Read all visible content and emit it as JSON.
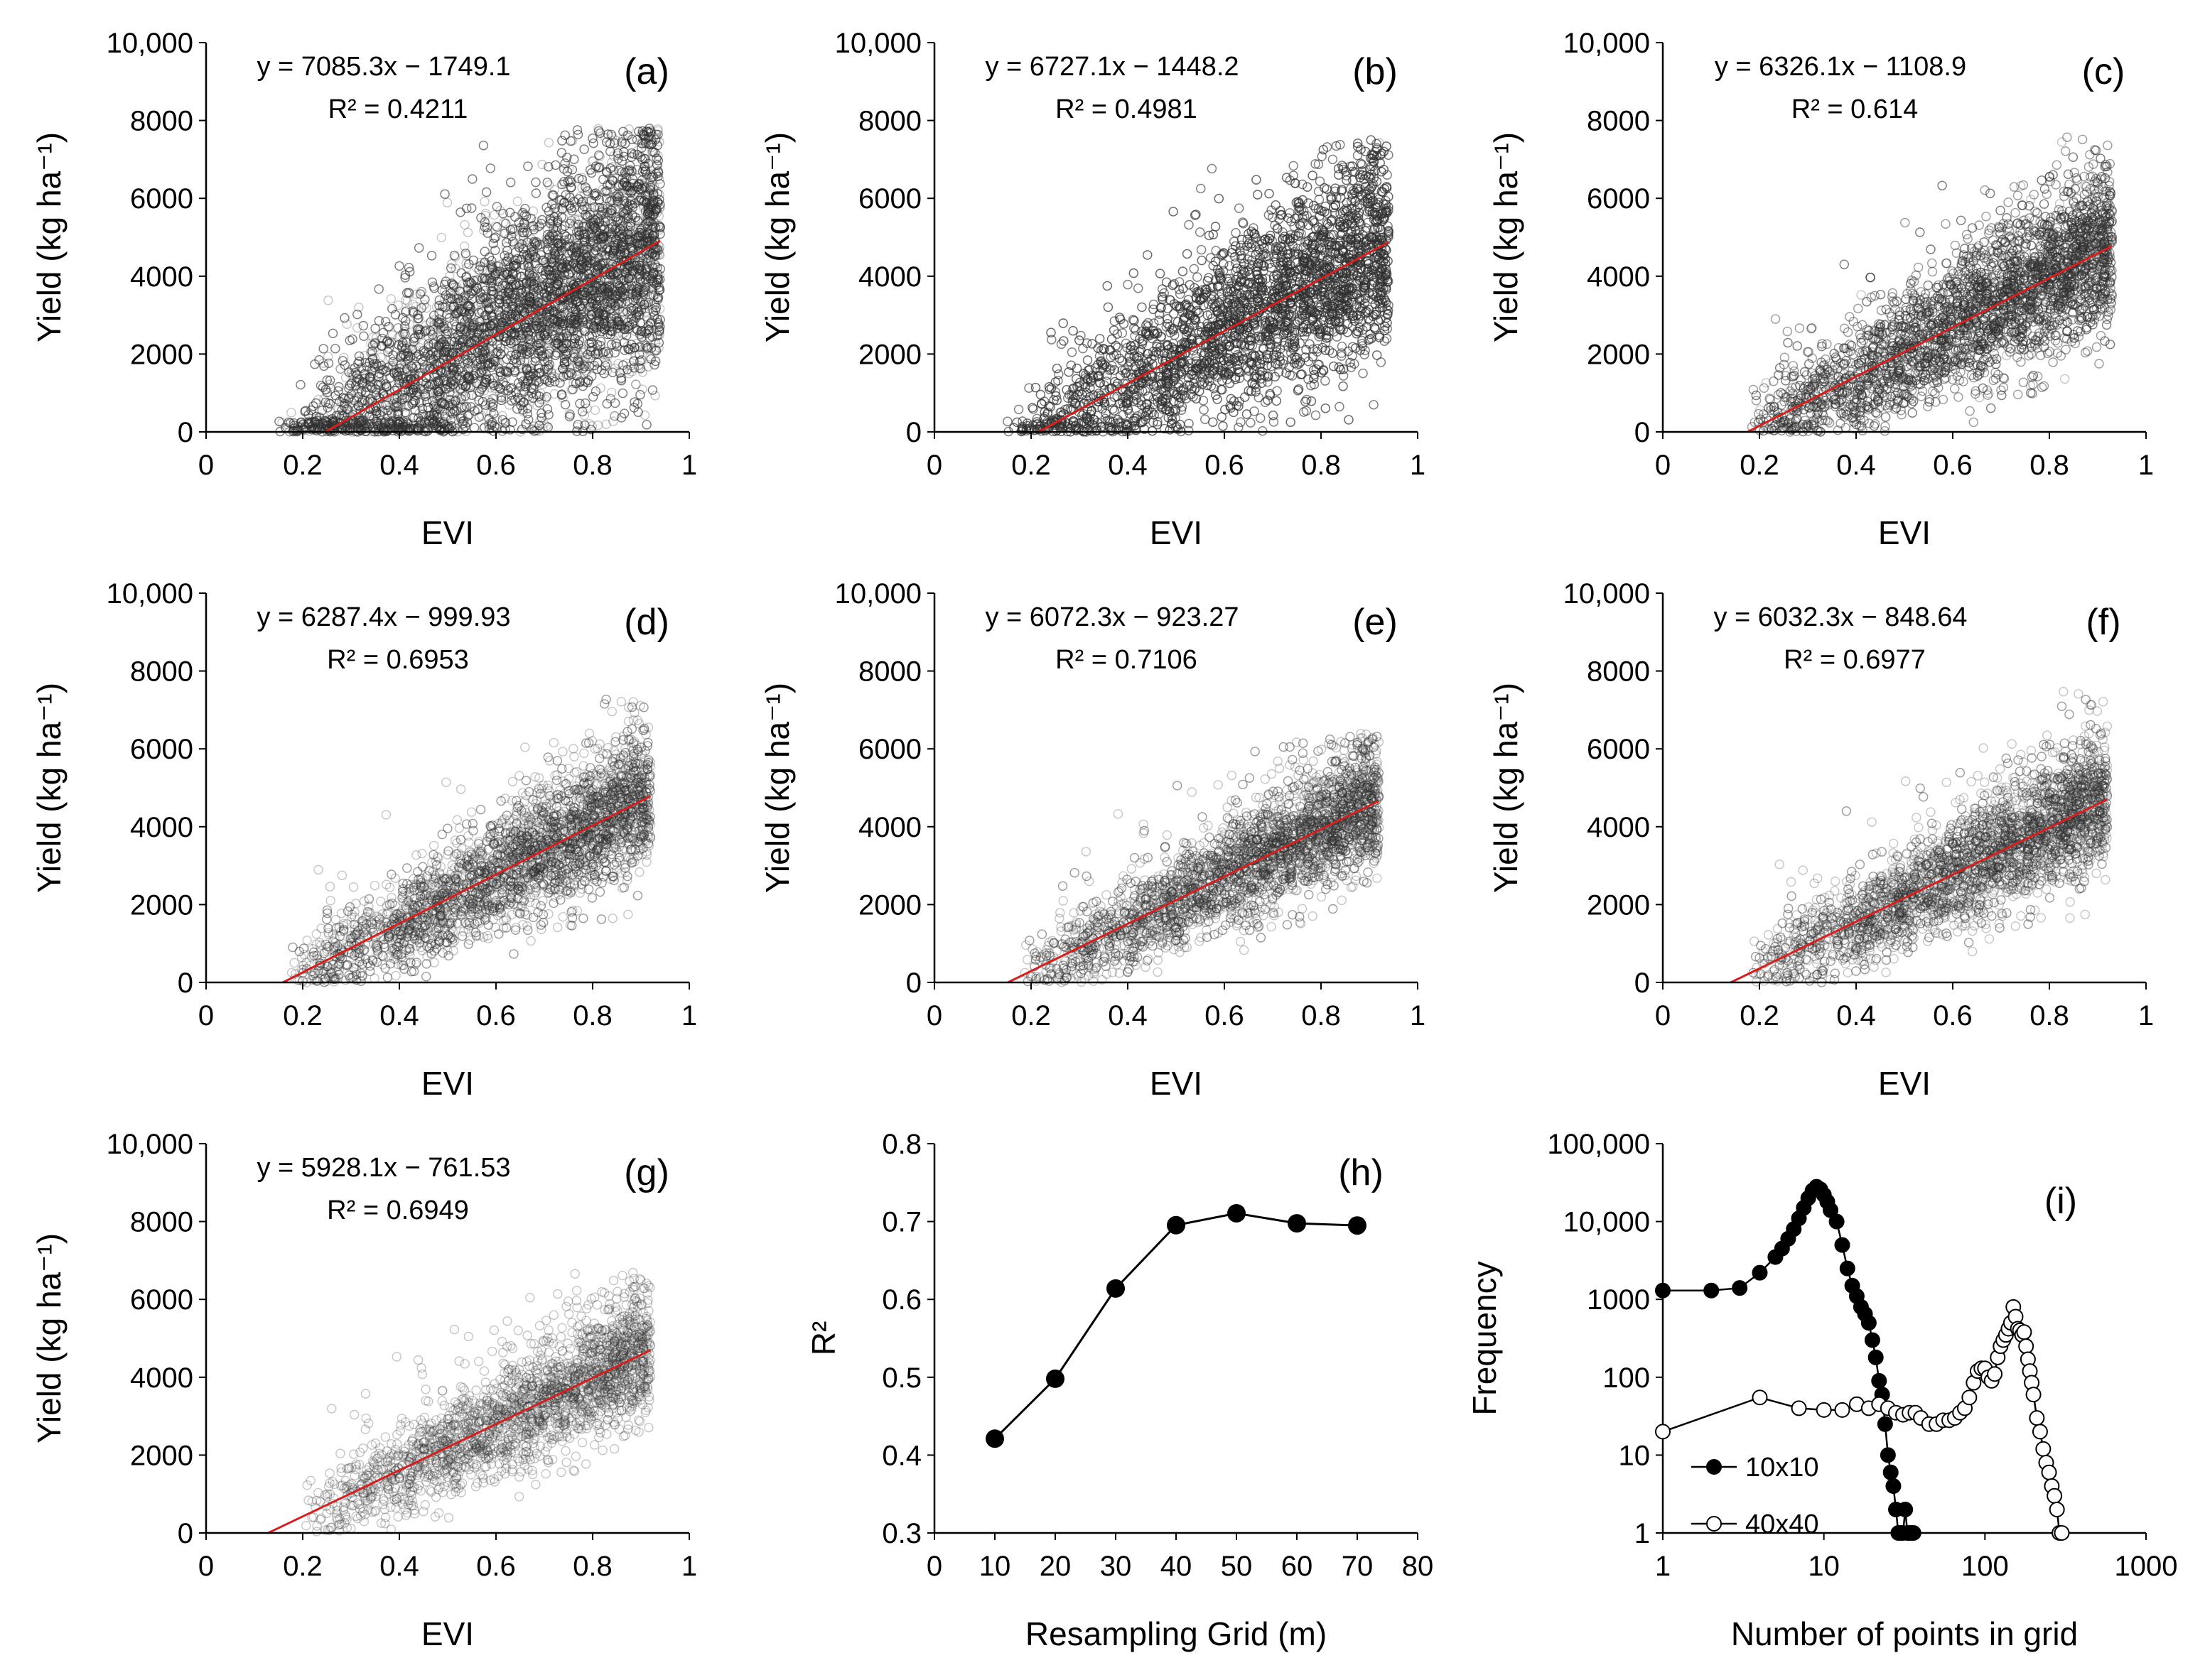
{
  "colors": {
    "fit_line": "#d42020",
    "scatter": "#333333",
    "marker": "#000000",
    "open_marker": "#ffffff"
  },
  "chart_data": [
    {
      "id": "a",
      "type": "scatter",
      "panel_label": "(a)",
      "equation": "y = 7085.3x − 1749.1",
      "r2_text": "R² = 0.4211",
      "slope": 7085.3,
      "intercept": -1749.1,
      "xlabel": "EVI",
      "ylabel": "Yield (kg ha⁻¹)",
      "xlim": [
        0,
        1
      ],
      "ylim": [
        0,
        10000
      ],
      "x_ticks": [
        "0",
        "0.2",
        "0.4",
        "0.6",
        "0.8",
        "1"
      ],
      "y_ticks": [
        "0",
        "2000",
        "4000",
        "6000",
        "8000",
        "10,000"
      ],
      "point_cloud": {
        "x_range": [
          0.15,
          0.94
        ],
        "y_max": 7800,
        "spread": 1500,
        "density": "very high"
      }
    },
    {
      "id": "b",
      "type": "scatter",
      "panel_label": "(b)",
      "equation": "y = 6727.1x − 1448.2",
      "r2_text": "R² = 0.4981",
      "slope": 6727.1,
      "intercept": -1448.2,
      "xlabel": "EVI",
      "ylabel": "Yield (kg ha⁻¹)",
      "xlim": [
        0,
        1
      ],
      "ylim": [
        0,
        10000
      ],
      "x_ticks": [
        "0",
        "0.2",
        "0.4",
        "0.6",
        "0.8",
        "1"
      ],
      "y_ticks": [
        "0",
        "2000",
        "4000",
        "6000",
        "8000",
        "10,000"
      ],
      "point_cloud": {
        "x_range": [
          0.15,
          0.94
        ],
        "y_max": 7500,
        "spread": 1200,
        "density": "very high"
      }
    },
    {
      "id": "c",
      "type": "scatter",
      "panel_label": "(c)",
      "equation": "y = 6326.1x − 1108.9",
      "r2_text": "R² = 0.614",
      "slope": 6326.1,
      "intercept": -1108.9,
      "xlabel": "EVI",
      "ylabel": "Yield (kg ha⁻¹)",
      "xlim": [
        0,
        1
      ],
      "ylim": [
        0,
        10000
      ],
      "x_ticks": [
        "0",
        "0.2",
        "0.4",
        "0.6",
        "0.8",
        "1"
      ],
      "y_ticks": [
        "0",
        "2000",
        "4000",
        "6000",
        "8000",
        "10,000"
      ],
      "point_cloud": {
        "x_range": [
          0.17,
          0.93
        ],
        "y_max": 7600,
        "spread": 950,
        "density": "high"
      }
    },
    {
      "id": "d",
      "type": "scatter",
      "panel_label": "(d)",
      "equation": "y = 6287.4x − 999.93",
      "r2_text": "R² = 0.6953",
      "slope": 6287.4,
      "intercept": -999.93,
      "xlabel": "EVI",
      "ylabel": "Yield (kg ha⁻¹)",
      "xlim": [
        0,
        1
      ],
      "ylim": [
        0,
        10000
      ],
      "x_ticks": [
        "0",
        "0.2",
        "0.4",
        "0.6",
        "0.8",
        "1"
      ],
      "y_ticks": [
        "0",
        "2000",
        "4000",
        "6000",
        "8000",
        "10,000"
      ],
      "point_cloud": {
        "x_range": [
          0.17,
          0.92
        ],
        "y_max": 7300,
        "spread": 800,
        "density": "medium"
      }
    },
    {
      "id": "e",
      "type": "scatter",
      "panel_label": "(e)",
      "equation": "y = 6072.3x − 923.27",
      "r2_text": "R² = 0.7106",
      "slope": 6072.3,
      "intercept": -923.27,
      "xlabel": "EVI",
      "ylabel": "Yield (kg ha⁻¹)",
      "xlim": [
        0,
        1
      ],
      "ylim": [
        0,
        10000
      ],
      "x_ticks": [
        "0",
        "0.2",
        "0.4",
        "0.6",
        "0.8",
        "1"
      ],
      "y_ticks": [
        "0",
        "2000",
        "4000",
        "6000",
        "8000",
        "10,000"
      ],
      "point_cloud": {
        "x_range": [
          0.18,
          0.92
        ],
        "y_max": 6400,
        "spread": 750,
        "density": "medium"
      }
    },
    {
      "id": "f",
      "type": "scatter",
      "panel_label": "(f)",
      "equation": "y = 6032.3x − 848.64",
      "r2_text": "R² = 0.6977",
      "slope": 6032.3,
      "intercept": -848.64,
      "xlabel": "EVI",
      "ylabel": "Yield (kg ha⁻¹)",
      "xlim": [
        0,
        1
      ],
      "ylim": [
        0,
        10000
      ],
      "x_ticks": [
        "0",
        "0.2",
        "0.4",
        "0.6",
        "0.8",
        "1"
      ],
      "y_ticks": [
        "0",
        "2000",
        "4000",
        "6000",
        "8000",
        "10,000"
      ],
      "point_cloud": {
        "x_range": [
          0.18,
          0.92
        ],
        "y_max": 7500,
        "spread": 780,
        "density": "medium"
      }
    },
    {
      "id": "g",
      "type": "scatter",
      "panel_label": "(g)",
      "equation": "y = 5928.1x − 761.53",
      "r2_text": "R² = 0.6949",
      "slope": 5928.1,
      "intercept": -761.53,
      "xlabel": "EVI",
      "ylabel": "Yield (kg ha⁻¹)",
      "xlim": [
        0,
        1
      ],
      "ylim": [
        0,
        10000
      ],
      "x_ticks": [
        "0",
        "0.2",
        "0.4",
        "0.6",
        "0.8",
        "1"
      ],
      "y_ticks": [
        "0",
        "2000",
        "4000",
        "6000",
        "8000",
        "10,000"
      ],
      "point_cloud": {
        "x_range": [
          0.2,
          0.92
        ],
        "y_max": 6700,
        "spread": 750,
        "density": "low"
      }
    },
    {
      "id": "h",
      "type": "line",
      "panel_label": "(h)",
      "xlabel": "Resampling Grid (m)",
      "ylabel": "R²",
      "xlim": [
        0,
        80
      ],
      "ylim": [
        0.3,
        0.8
      ],
      "x_ticks": [
        "0",
        "10",
        "20",
        "30",
        "40",
        "50",
        "60",
        "70",
        "80"
      ],
      "y_ticks": [
        "0.3",
        "0.4",
        "0.5",
        "0.6",
        "0.7",
        "0.8"
      ],
      "x": [
        10,
        20,
        30,
        40,
        50,
        60,
        70
      ],
      "values": [
        0.4211,
        0.4981,
        0.614,
        0.6953,
        0.7106,
        0.6977,
        0.6949
      ]
    },
    {
      "id": "i",
      "type": "line",
      "panel_label": "(i)",
      "scale": "log-log",
      "xlabel": "Number of points in grid",
      "ylabel": "Frequency",
      "xlim": [
        1,
        1000
      ],
      "ylim": [
        1,
        100000
      ],
      "x_ticks": [
        "1",
        "10",
        "100",
        "1000"
      ],
      "y_ticks": [
        "1",
        "10",
        "100",
        "1000",
        "10,000",
        "100,000"
      ],
      "legend_position": "bottom-left",
      "series": [
        {
          "name": "10x10",
          "marker": "filled",
          "x": [
            1,
            2,
            3,
            4,
            5,
            5.5,
            6,
            6.5,
            7,
            7.5,
            8,
            8.5,
            9,
            9.5,
            10,
            10.5,
            11,
            12,
            13,
            14,
            15,
            16,
            17,
            18,
            19,
            20,
            21,
            22,
            23,
            24,
            25,
            26,
            27,
            28,
            29,
            30,
            31,
            32,
            33,
            34,
            35,
            36
          ],
          "y": [
            1300,
            1300,
            1400,
            2200,
            3500,
            4500,
            6000,
            8000,
            11000,
            15000,
            20000,
            25000,
            28000,
            26000,
            22000,
            18000,
            14000,
            10000,
            5000,
            2500,
            1500,
            1100,
            800,
            650,
            500,
            300,
            180,
            90,
            60,
            25,
            10,
            6,
            4,
            2,
            1,
            1,
            1,
            2,
            1,
            1,
            1,
            1
          ]
        },
        {
          "name": "40x40",
          "marker": "open",
          "x": [
            1,
            4,
            7,
            10,
            13,
            16,
            19,
            22,
            25,
            28,
            31,
            34,
            37,
            40,
            45,
            50,
            55,
            60,
            65,
            70,
            75,
            80,
            85,
            90,
            95,
            100,
            105,
            110,
            115,
            120,
            125,
            130,
            135,
            140,
            145,
            150,
            155,
            160,
            165,
            170,
            175,
            180,
            185,
            190,
            195,
            200,
            210,
            220,
            230,
            240,
            250,
            260,
            270,
            280,
            290,
            300
          ],
          "y": [
            20,
            55,
            40,
            38,
            38,
            45,
            40,
            45,
            40,
            35,
            33,
            35,
            35,
            30,
            25,
            25,
            28,
            28,
            30,
            35,
            40,
            55,
            85,
            120,
            130,
            130,
            100,
            90,
            110,
            180,
            250,
            300,
            350,
            420,
            500,
            800,
            600,
            420,
            400,
            350,
            380,
            250,
            170,
            120,
            85,
            60,
            30,
            20,
            12,
            8,
            6,
            4,
            3,
            2,
            1,
            1
          ]
        }
      ]
    }
  ]
}
